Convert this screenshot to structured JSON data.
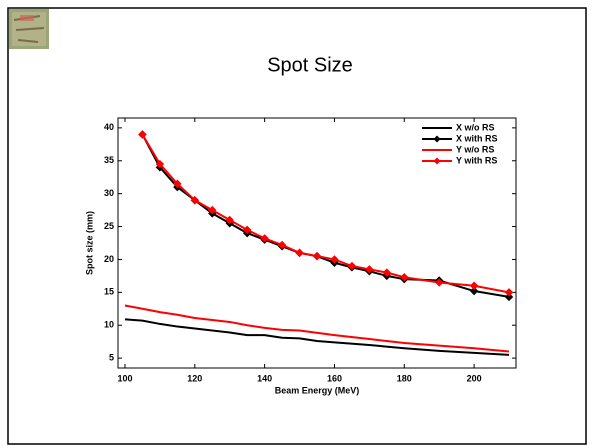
{
  "chart_data": {
    "type": "line",
    "title": "Spot Size",
    "xlabel": "Beam Energy (MeV)",
    "ylabel": "Spot size (mm)",
    "xlim": [
      98,
      212
    ],
    "xticks": [
      100,
      120,
      140,
      160,
      180,
      200
    ],
    "ylim": [
      3.5,
      41.5
    ],
    "yticks": [
      5,
      10,
      15,
      20,
      25,
      30,
      35,
      40
    ],
    "legend": "upper right",
    "series": [
      {
        "name": "X w/o RS",
        "color": "#000000",
        "marker": false,
        "x": [
          100,
          105,
          110,
          115,
          120,
          130,
          135,
          140,
          145,
          150,
          155,
          160,
          170,
          180,
          190,
          200,
          210
        ],
        "values": [
          10.9,
          10.7,
          10.2,
          9.8,
          9.5,
          8.9,
          8.5,
          8.5,
          8.1,
          8,
          7.6,
          7.4,
          7,
          6.5,
          6.1,
          5.8,
          5.5
        ]
      },
      {
        "name": "X with RS",
        "color": "#000000",
        "marker": true,
        "x": [
          105,
          110,
          115,
          120,
          125,
          130,
          135,
          140,
          145,
          150,
          155,
          160,
          165,
          170,
          175,
          180,
          190,
          200,
          210
        ],
        "values": [
          39,
          34,
          31,
          29,
          27,
          25.5,
          24,
          23,
          22,
          21,
          20.5,
          19.5,
          18.8,
          18.2,
          17.5,
          17,
          16.8,
          15.2,
          14.3
        ]
      },
      {
        "name": "Y w/o RS",
        "color": "#ff0000",
        "marker": false,
        "x": [
          100,
          105,
          110,
          115,
          120,
          130,
          135,
          140,
          145,
          150,
          160,
          170,
          180,
          190,
          200,
          210
        ],
        "values": [
          13,
          12.5,
          12,
          11.6,
          11.1,
          10.5,
          10,
          9.6,
          9.3,
          9.2,
          8.5,
          7.9,
          7.3,
          6.9,
          6.5,
          6
        ]
      },
      {
        "name": "Y with RS",
        "color": "#ff0000",
        "marker": true,
        "x": [
          105,
          110,
          115,
          120,
          125,
          130,
          135,
          140,
          145,
          150,
          155,
          160,
          165,
          170,
          175,
          180,
          190,
          200,
          210
        ],
        "values": [
          39,
          34.5,
          31.5,
          29,
          27.5,
          26,
          24.5,
          23.2,
          22.2,
          21,
          20.5,
          20,
          19,
          18.5,
          18,
          17.3,
          16.5,
          16,
          15
        ]
      }
    ]
  }
}
